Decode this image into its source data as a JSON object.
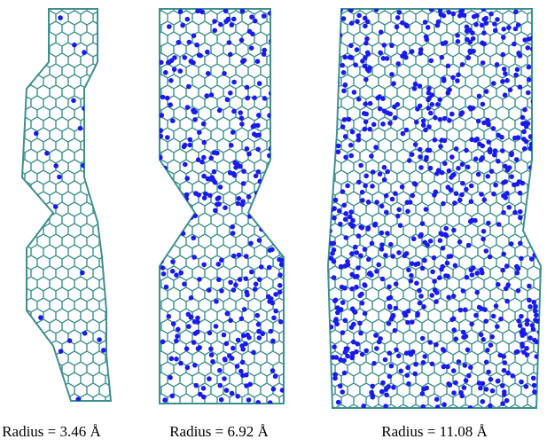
{
  "panels": [
    {
      "label": "Radius = 3.46 Å"
    },
    {
      "label": "Radius = 6.92 Å"
    },
    {
      "label": "Radius = 11.08 Å"
    }
  ]
}
